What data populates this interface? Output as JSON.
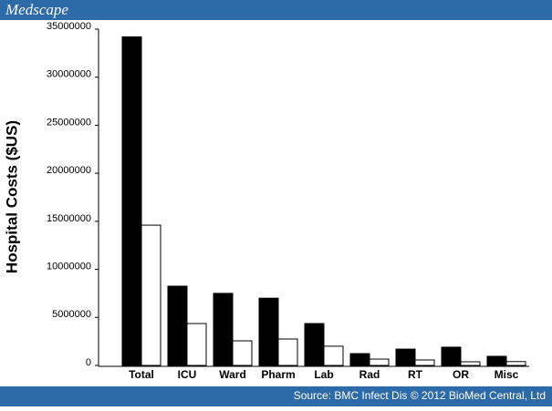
{
  "header": {
    "title": "Medscape"
  },
  "footer": {
    "source": "Source: BMC Infect Dis © 2012 BioMed Central, Ltd"
  },
  "chart_data": {
    "type": "bar",
    "y_label": "Hospital Costs ($US)",
    "categories": [
      "Total",
      "ICU",
      "Ward",
      "Pharm",
      "Lab",
      "Rad",
      "RT",
      "OR",
      "Misc"
    ],
    "series": [
      {
        "color": "#000000",
        "values": [
          34200000,
          8250000,
          7500000,
          7000000,
          4360000,
          1230000,
          1700000,
          1900000,
          950000
        ]
      },
      {
        "color": "#ffffff",
        "values": [
          14600000,
          4360000,
          2560000,
          2750000,
          2000000,
          660000,
          570000,
          380000,
          400000
        ]
      }
    ],
    "ylim": [
      0,
      35000000
    ],
    "yticks": [
      0,
      5000000,
      10000000,
      15000000,
      20000000,
      25000000,
      30000000,
      35000000
    ]
  }
}
